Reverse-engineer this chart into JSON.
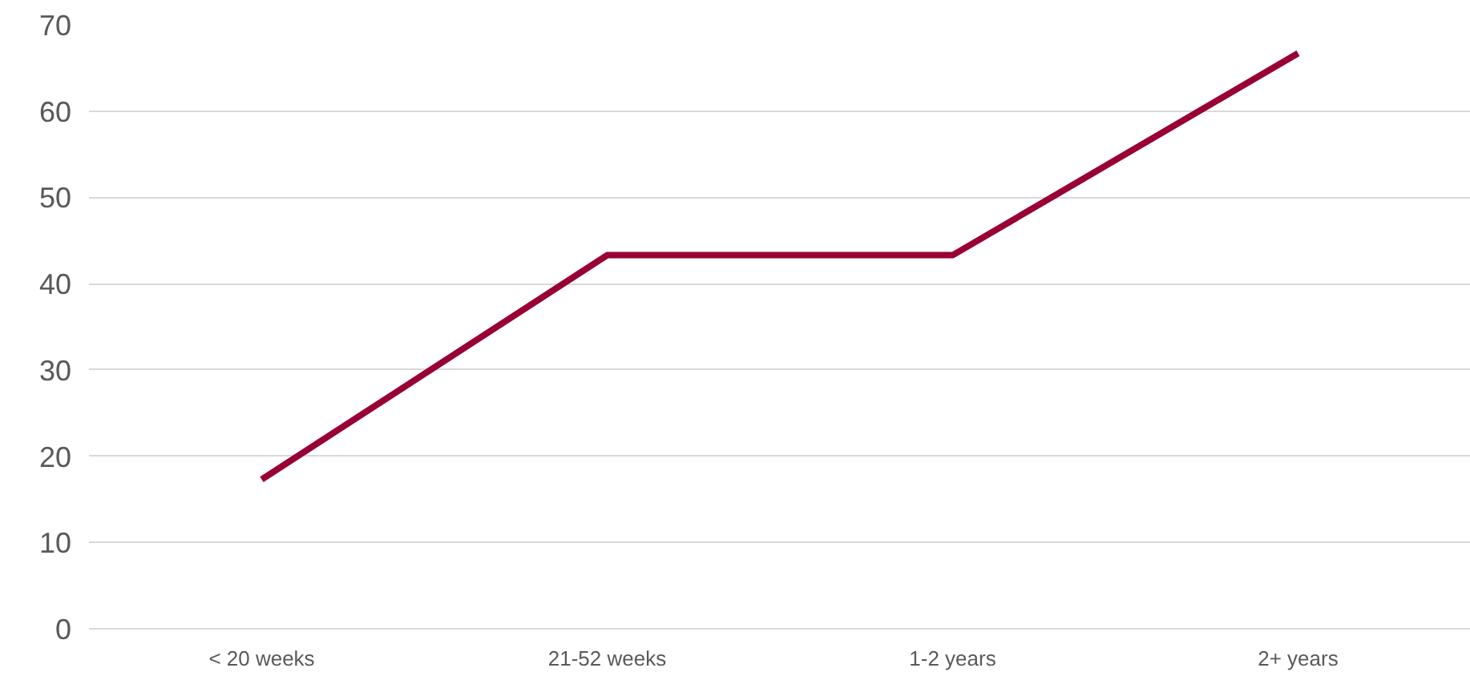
{
  "chart_data": {
    "type": "line",
    "categories": [
      "< 20 weeks",
      "21-52 weeks",
      "1-2 years",
      "2+ years"
    ],
    "series": [
      {
        "color": "#990033",
        "values": [
          17.3,
          43.3,
          43.3,
          66.7
        ]
      }
    ],
    "ylim": [
      0,
      70
    ],
    "yticks": [
      0,
      10,
      20,
      30,
      40,
      50,
      60,
      70
    ],
    "grid": "y",
    "marker": "none",
    "line_style": "solid"
  }
}
